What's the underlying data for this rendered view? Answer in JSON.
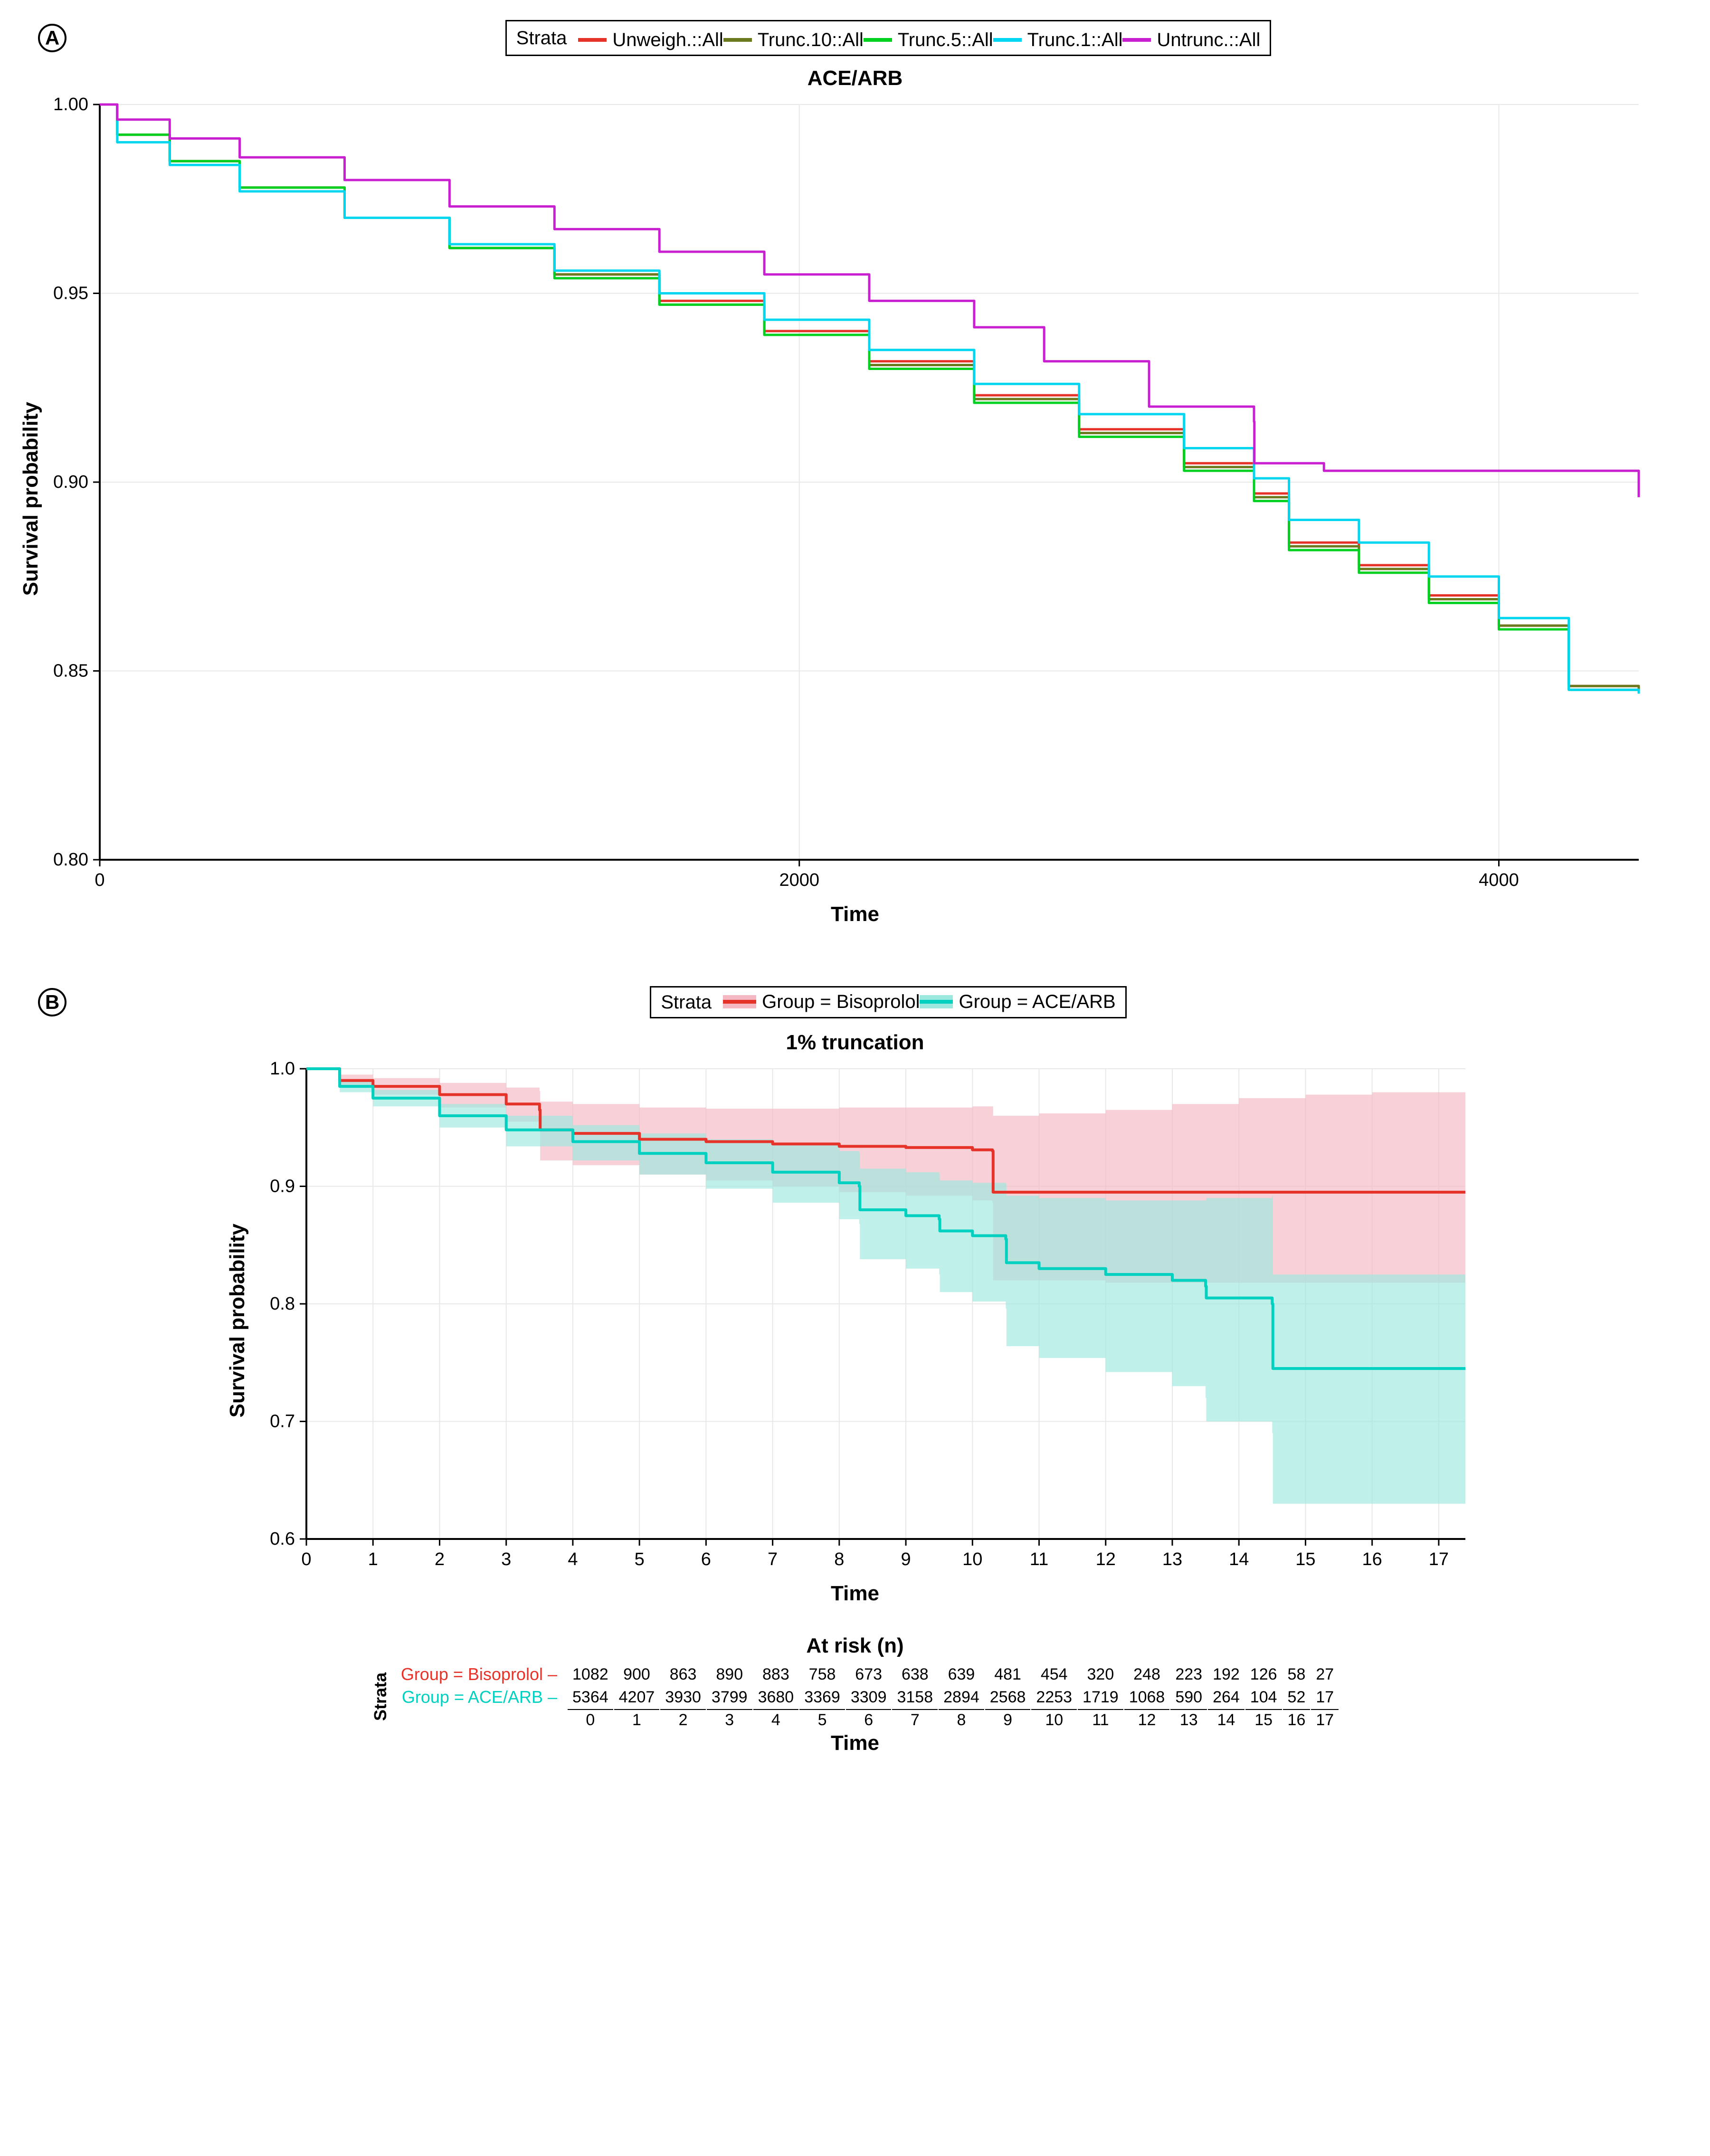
{
  "panelA": {
    "label": "A",
    "legend_title": "Strata",
    "legend": [
      {
        "label": "Unweigh.::All",
        "color": "#e6332a"
      },
      {
        "label": "Trunc.10::All",
        "color": "#6b7a1f"
      },
      {
        "label": "Trunc.5::All",
        "color": "#00d020"
      },
      {
        "label": "Trunc.1::All",
        "color": "#00d6f0"
      },
      {
        "label": "Untrunc.::All",
        "color": "#c820d0"
      }
    ],
    "chart": {
      "type": "line",
      "title": "ACE/ARB",
      "xlabel": "Time",
      "ylabel": "Survival probability",
      "xlim": [
        0,
        4400
      ],
      "xticks": [
        0,
        2000,
        4000
      ],
      "ylim": [
        0.8,
        1.0
      ],
      "yticks": [
        0.8,
        0.85,
        0.9,
        0.95,
        1.0
      ],
      "background_color": "#ffffff",
      "grid_color": "#e8e8e8",
      "line_width": 5,
      "series": [
        {
          "name": "Unweigh.::All",
          "color": "#e6332a",
          "x": [
            0,
            50,
            200,
            400,
            700,
            1000,
            1300,
            1600,
            1900,
            2200,
            2500,
            2800,
            3100,
            3300,
            3400,
            3600,
            3800,
            4000,
            4200,
            4400
          ],
          "y": [
            1.0,
            0.992,
            0.985,
            0.978,
            0.97,
            0.962,
            0.955,
            0.948,
            0.94,
            0.932,
            0.923,
            0.914,
            0.905,
            0.897,
            0.884,
            0.878,
            0.87,
            0.862,
            0.846,
            0.845
          ]
        },
        {
          "name": "Trunc.10::All",
          "color": "#6b7a1f",
          "x": [
            0,
            50,
            200,
            400,
            700,
            1000,
            1300,
            1600,
            1900,
            2200,
            2500,
            2800,
            3100,
            3300,
            3400,
            3600,
            3800,
            4000,
            4200,
            4400
          ],
          "y": [
            1.0,
            0.992,
            0.985,
            0.978,
            0.97,
            0.962,
            0.955,
            0.947,
            0.939,
            0.931,
            0.922,
            0.913,
            0.904,
            0.896,
            0.883,
            0.877,
            0.869,
            0.862,
            0.846,
            0.845
          ]
        },
        {
          "name": "Trunc.5::All",
          "color": "#00d020",
          "x": [
            0,
            50,
            200,
            400,
            700,
            1000,
            1300,
            1600,
            1900,
            2200,
            2500,
            2800,
            3100,
            3300,
            3400,
            3600,
            3800,
            4000,
            4200,
            4400
          ],
          "y": [
            1.0,
            0.992,
            0.985,
            0.978,
            0.97,
            0.962,
            0.954,
            0.947,
            0.939,
            0.93,
            0.921,
            0.912,
            0.903,
            0.895,
            0.882,
            0.876,
            0.868,
            0.861,
            0.845,
            0.844
          ]
        },
        {
          "name": "Trunc.1::All",
          "color": "#00d6f0",
          "x": [
            0,
            50,
            200,
            400,
            700,
            1000,
            1300,
            1600,
            1900,
            2200,
            2500,
            2800,
            3100,
            3300,
            3400,
            3600,
            3800,
            4000,
            4200,
            4400
          ],
          "y": [
            1.0,
            0.99,
            0.984,
            0.977,
            0.97,
            0.963,
            0.956,
            0.95,
            0.943,
            0.935,
            0.926,
            0.918,
            0.909,
            0.901,
            0.89,
            0.884,
            0.875,
            0.864,
            0.845,
            0.844
          ]
        },
        {
          "name": "Untrunc.::All",
          "color": "#c820d0",
          "x": [
            0,
            50,
            200,
            400,
            700,
            1000,
            1300,
            1600,
            1900,
            2200,
            2500,
            2700,
            2701,
            3000,
            3300,
            3301,
            3500,
            3700,
            4000,
            4400
          ],
          "y": [
            1.0,
            0.996,
            0.991,
            0.986,
            0.98,
            0.973,
            0.967,
            0.961,
            0.955,
            0.948,
            0.941,
            0.932,
            0.932,
            0.92,
            0.916,
            0.905,
            0.903,
            0.903,
            0.903,
            0.896
          ]
        }
      ]
    }
  },
  "panelB": {
    "label": "B",
    "legend_title": "Strata",
    "legend": [
      {
        "label": "Group = Bisoprolol",
        "line": "#e6332a",
        "fill": "#f3b8c2"
      },
      {
        "label": "Group = ACE/ARB",
        "line": "#00d0c0",
        "fill": "#9ce8de"
      }
    ],
    "chart": {
      "type": "survival",
      "title": "1% truncation",
      "xlabel": "Time",
      "ylabel": "Survival probability",
      "xlim": [
        0,
        17.4
      ],
      "xticks": [
        0,
        1,
        2,
        3,
        4,
        5,
        6,
        7,
        8,
        9,
        10,
        11,
        12,
        13,
        14,
        15,
        16,
        17
      ],
      "ylim": [
        0.6,
        1.0
      ],
      "yticks": [
        0.6,
        0.7,
        0.8,
        0.9,
        1.0
      ],
      "background_color": "#ffffff",
      "grid_color": "#e8e8e8",
      "line_width": 6,
      "series": [
        {
          "name": "Bisoprolol",
          "color": "#e6332a",
          "fill": "#f3b8c2",
          "x": [
            0,
            0.5,
            1,
            2,
            3,
            3.5,
            3.51,
            4,
            5,
            6,
            7,
            8,
            9,
            10,
            10.3,
            10.31,
            11,
            12,
            13,
            14,
            15,
            16,
            17,
            17.4
          ],
          "y": [
            1.0,
            0.99,
            0.985,
            0.978,
            0.97,
            0.965,
            0.948,
            0.945,
            0.94,
            0.938,
            0.936,
            0.934,
            0.933,
            0.931,
            0.93,
            0.895,
            0.895,
            0.895,
            0.895,
            0.895,
            0.895,
            0.895,
            0.895,
            0.895
          ],
          "lo": [
            1.0,
            0.985,
            0.978,
            0.967,
            0.955,
            0.948,
            0.922,
            0.918,
            0.91,
            0.905,
            0.9,
            0.895,
            0.892,
            0.888,
            0.886,
            0.82,
            0.82,
            0.818,
            0.818,
            0.818,
            0.818,
            0.818,
            0.818,
            0.818
          ],
          "hi": [
            1.0,
            0.995,
            0.992,
            0.988,
            0.984,
            0.981,
            0.972,
            0.97,
            0.967,
            0.966,
            0.966,
            0.967,
            0.967,
            0.968,
            0.968,
            0.96,
            0.962,
            0.965,
            0.97,
            0.975,
            0.978,
            0.98,
            0.98,
            0.98
          ]
        },
        {
          "name": "ACE/ARB",
          "color": "#00d0c0",
          "fill": "#9ce8de",
          "x": [
            0,
            0.5,
            1,
            2,
            3,
            4,
            5,
            6,
            7,
            8,
            8.3,
            8.31,
            9,
            9.5,
            9.51,
            10,
            10.5,
            10.51,
            11,
            12,
            13,
            13.5,
            13.51,
            14.5,
            14.51,
            15,
            16,
            17,
            17.4
          ],
          "y": [
            1.0,
            0.985,
            0.975,
            0.96,
            0.948,
            0.938,
            0.928,
            0.92,
            0.912,
            0.903,
            0.9,
            0.88,
            0.875,
            0.872,
            0.862,
            0.858,
            0.855,
            0.835,
            0.83,
            0.825,
            0.82,
            0.815,
            0.805,
            0.8,
            0.745,
            0.745,
            0.745,
            0.745,
            0.745
          ],
          "lo": [
            1.0,
            0.98,
            0.968,
            0.95,
            0.934,
            0.922,
            0.91,
            0.898,
            0.886,
            0.872,
            0.868,
            0.838,
            0.83,
            0.825,
            0.81,
            0.802,
            0.796,
            0.764,
            0.754,
            0.742,
            0.73,
            0.72,
            0.7,
            0.69,
            0.63,
            0.63,
            0.63,
            0.63,
            0.63
          ],
          "hi": [
            1.0,
            0.99,
            0.982,
            0.97,
            0.96,
            0.952,
            0.945,
            0.94,
            0.936,
            0.93,
            0.928,
            0.915,
            0.912,
            0.91,
            0.905,
            0.903,
            0.902,
            0.892,
            0.89,
            0.888,
            0.888,
            0.888,
            0.89,
            0.892,
            0.825,
            0.825,
            0.825,
            0.825,
            0.825
          ]
        }
      ]
    },
    "risk_table": {
      "title": "At risk (n)",
      "xlabel": "Time",
      "strata_label": "Strata",
      "rows": [
        {
          "label": "Group = Bisoprolol",
          "color": "#e6332a",
          "values": [
            1082,
            900,
            863,
            890,
            883,
            758,
            673,
            638,
            639,
            481,
            454,
            320,
            248,
            223,
            192,
            126,
            58,
            27
          ]
        },
        {
          "label": "Group = ACE/ARB",
          "color": "#00d0c0",
          "values": [
            5364,
            4207,
            3930,
            3799,
            3680,
            3369,
            3309,
            3158,
            2894,
            2568,
            2253,
            1719,
            1068,
            590,
            264,
            104,
            52,
            17
          ]
        }
      ],
      "times": [
        0,
        1,
        2,
        3,
        4,
        5,
        6,
        7,
        8,
        9,
        10,
        11,
        12,
        13,
        14,
        15,
        16,
        17
      ]
    }
  }
}
